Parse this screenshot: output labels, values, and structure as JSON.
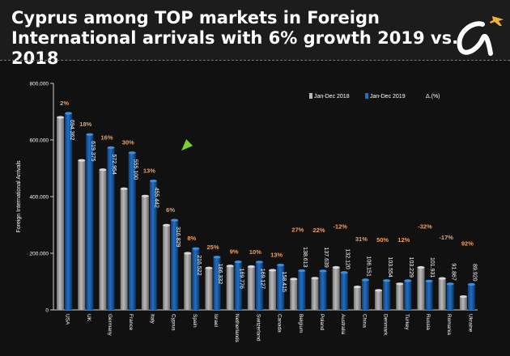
{
  "header": {
    "title": "Cyprus among TOP markets in Foreign International arrivals with 6% growth 2019 vs. 2018"
  },
  "colors": {
    "background": "#111111",
    "series_2018": "#b9b9b9",
    "series_2019": "#1f6fc4",
    "growth_label": "#f0a060",
    "arrow": "#7bd02e",
    "logo_plane": "#f2b233"
  },
  "chart_data": {
    "type": "bar",
    "ylabel": "Foreign International Arrivals",
    "ylim": [
      0,
      800000
    ],
    "yticks": [
      0,
      200000,
      400000,
      600000,
      800000
    ],
    "ytick_labels": [
      "0",
      "200.000",
      "400.000",
      "600.000",
      "800.000"
    ],
    "categories": [
      "USA",
      "UK",
      "Germany",
      "France",
      "Italy",
      "Cyprus",
      "Spain",
      "Israel",
      "Netherlands",
      "Switzerland",
      "Canada",
      "Belgium",
      "Poland",
      "Australia",
      "China",
      "Denmark",
      "Turkey",
      "Russia",
      "Romania",
      "Ukraine"
    ],
    "series": [
      {
        "name": "Jan-Dec 2018",
        "values": [
          680000,
          528000,
          495000,
          428000,
          402000,
          299000,
          200000,
          148000,
          155000,
          153000,
          140000,
          109000,
          112000,
          150000,
          81000,
          69000,
          92000,
          150000,
          111000,
          47000
        ]
      },
      {
        "name": "Jan-Dec 2019",
        "values": [
          694362,
          619375,
          572954,
          555100,
          455442,
          316829,
          216522,
          186332,
          169776,
          169127,
          158415,
          138613,
          137639,
          132120,
          106151,
          103554,
          103229,
          101931,
          91867,
          89920
        ]
      }
    ],
    "value_labels": [
      "694.362",
      "619.375",
      "572.954",
      "555.100",
      "455.442",
      "316.829",
      "216.522",
      "186.332",
      "169.776",
      "169.127",
      "158.415",
      "138.613",
      "137.639",
      "132.120",
      "106.151",
      "103.554",
      "103.229",
      "101.931",
      "91.867",
      "89.920"
    ],
    "growth_labels": [
      "2%",
      "18%",
      "16%",
      "30%",
      "13%",
      "6%",
      "8%",
      "25%",
      "9%",
      "10%",
      "13%",
      "27%",
      "22%",
      "-12%",
      "31%",
      "50%",
      "12%",
      "-32%",
      "-17%",
      "92%"
    ],
    "delta_legend": "Δ.(%)",
    "legend_position": "top-right",
    "grid": false
  }
}
